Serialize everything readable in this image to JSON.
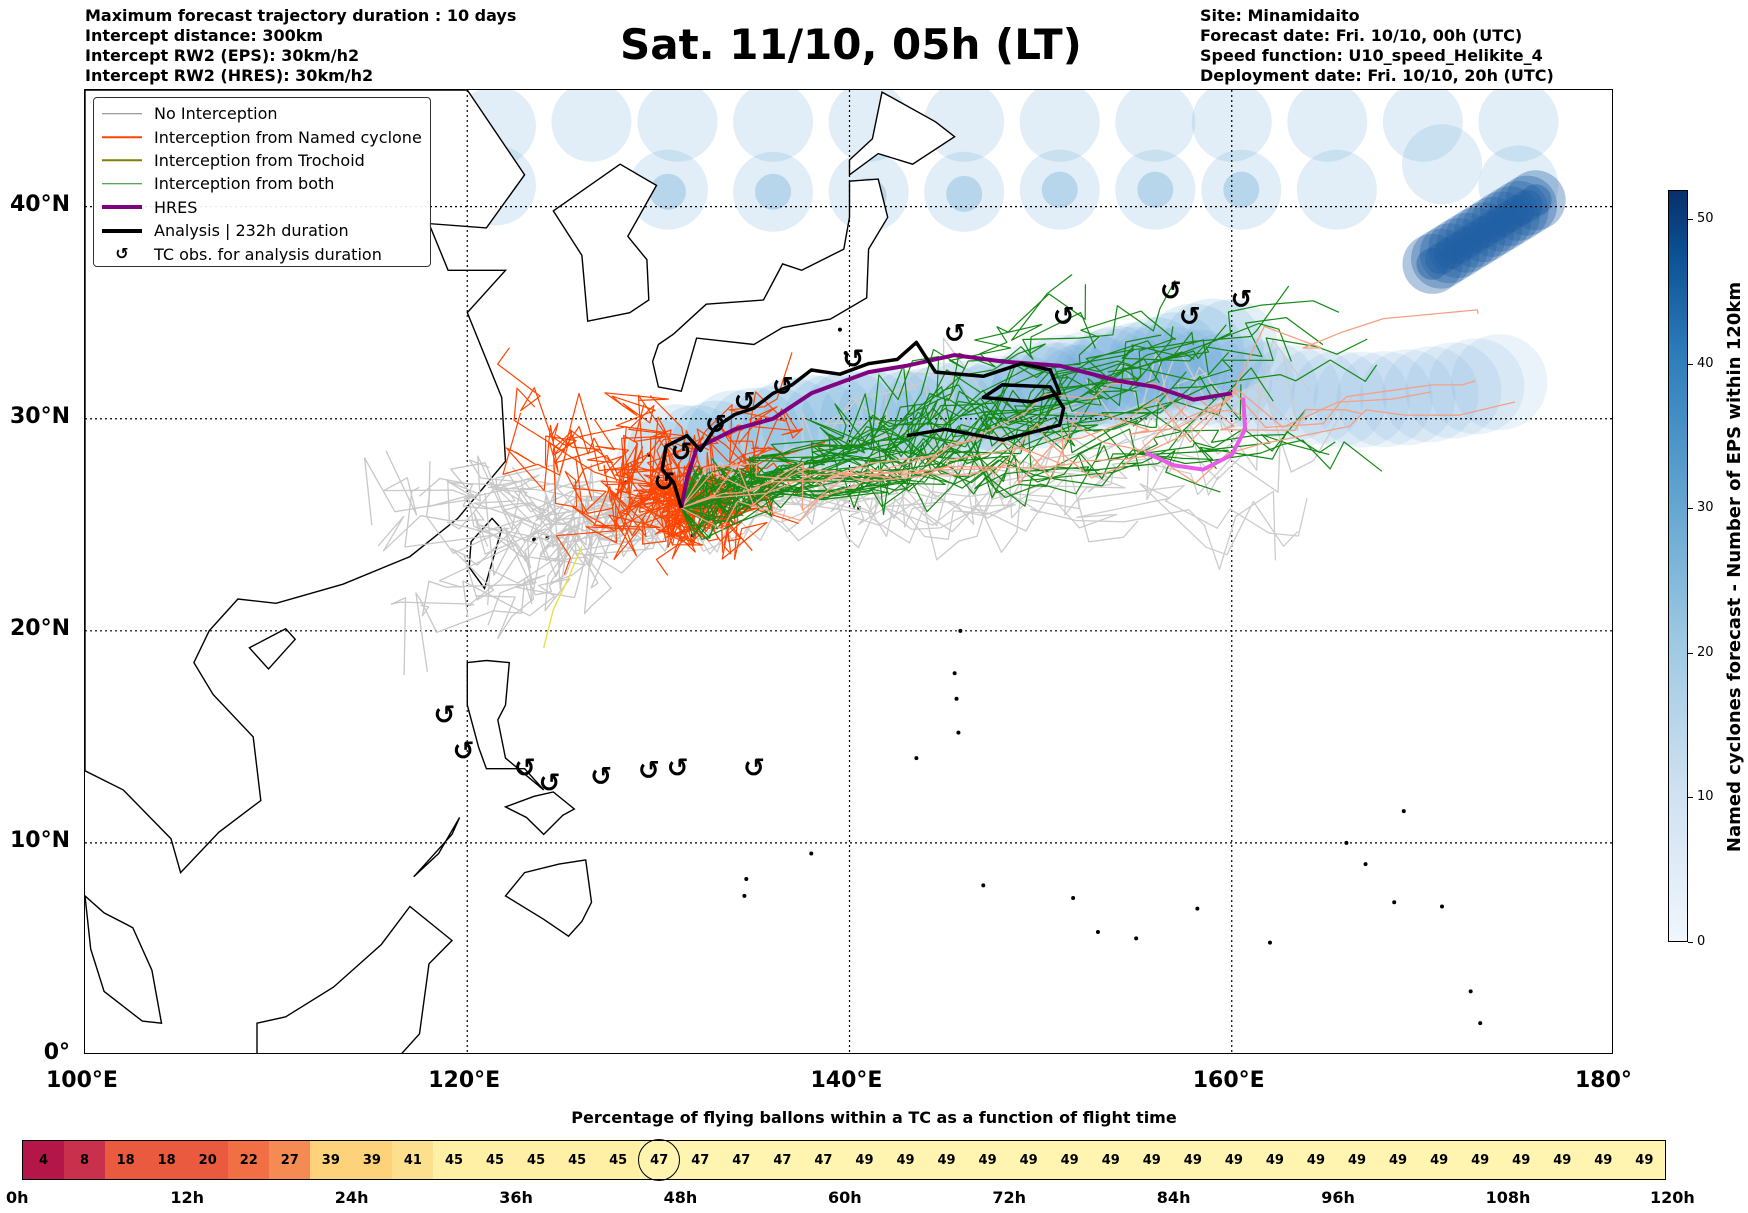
{
  "header": {
    "title": "Sat. 11/10, 05h (LT)",
    "left_lines": [
      "Maximum forecast trajectory duration : 10 days",
      "Intercept distance: 300km",
      "Intercept RW2 (EPS):  30km/h2",
      "Intercept RW2 (HRES): 30km/h2"
    ],
    "right_lines": [
      "Site: Minamidaito",
      "Forecast date: Fri. 10/10, 00h (UTC)",
      "Speed function: U10_speed_Helikite_4",
      "Deployment date: Fri. 10/10, 20h (UTC)"
    ]
  },
  "map": {
    "lon_range": [
      100,
      180
    ],
    "lat_range": [
      0,
      45.5
    ],
    "lon_labels": [
      "100°E",
      "120°E",
      "140°E",
      "160°E",
      "180°"
    ],
    "lat_labels": [
      "0°",
      "10°N",
      "20°N",
      "30°N",
      "40°N"
    ]
  },
  "legend": {
    "items": [
      {
        "label": "No Interception",
        "color": "#7f7f7f",
        "kind": "line-thin"
      },
      {
        "label": "Interception from Named cyclone",
        "color": "#ff4500",
        "kind": "line-thin"
      },
      {
        "label": "Interception from Trochoid",
        "color": "#808000",
        "kind": "line-thin"
      },
      {
        "label": "Interception from both",
        "color": "#228b22",
        "kind": "line-thin"
      },
      {
        "label": "HRES",
        "color": "#800080",
        "kind": "line-thick"
      },
      {
        "label": "Analysis | 232h duration",
        "color": "#000000",
        "kind": "line-thick"
      },
      {
        "label": "TC obs. for analysis duration",
        "color": "#000000",
        "kind": "symbol"
      }
    ]
  },
  "colorbar": {
    "label": "Named cyclones forecast - Number of EPS within 120km",
    "ticks": [
      "0",
      "10",
      "20",
      "30",
      "40",
      "50"
    ],
    "min": 0,
    "max": 52
  },
  "timebar": {
    "title": "Percentage of flying ballons within a TC as a function of flight time",
    "values": [
      4,
      8,
      18,
      18,
      20,
      22,
      27,
      39,
      39,
      41,
      45,
      45,
      45,
      45,
      45,
      47,
      47,
      47,
      47,
      47,
      49,
      49,
      49,
      49,
      49,
      49,
      49,
      49,
      49,
      49,
      49,
      49,
      49,
      49,
      49,
      49,
      49,
      49,
      49,
      49
    ],
    "circled_index": 15,
    "time_labels": [
      "0h",
      "12h",
      "24h",
      "36h",
      "48h",
      "60h",
      "72h",
      "84h",
      "96h",
      "108h",
      "120h"
    ]
  }
}
